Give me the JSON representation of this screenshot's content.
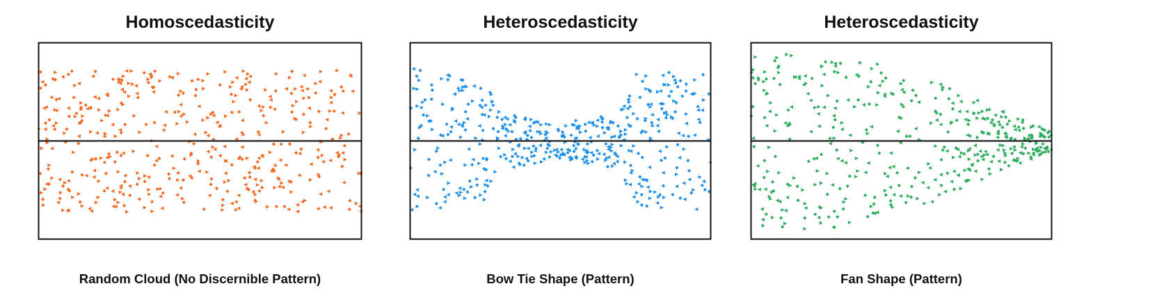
{
  "colors": {
    "orange": "#f26a21",
    "blue": "#1e90e8",
    "green": "#2cad5b",
    "frame": "#111111",
    "baseline": "#1a1a1a"
  },
  "marker": "small-triangle",
  "chart_data": [
    {
      "type": "scatter",
      "title": "Homoscedasticity",
      "caption": "Random Cloud (No Discernible Pattern)",
      "color": "#f26a21",
      "pattern": "random-cloud",
      "xlim": [
        0,
        100
      ],
      "ylim": [
        -4,
        4
      ],
      "baseline_y": 0,
      "grid": false,
      "n_points": 460,
      "spread_profile": {
        "kind": "constant",
        "min_abs": 0,
        "max_abs": 2.9
      }
    },
    {
      "type": "scatter",
      "title": "Heteroscedasticity",
      "caption": "Bow Tie Shape (Pattern)",
      "color": "#1e90e8",
      "pattern": "bow-tie",
      "xlim": [
        0,
        100
      ],
      "ylim": [
        -4,
        4
      ],
      "baseline_y": 0,
      "grid": false,
      "n_points": 480,
      "spread_profile": {
        "kind": "bow-tie",
        "x": [
          0,
          25,
          30,
          50,
          70,
          75,
          100
        ],
        "max_abs": [
          3.0,
          2.4,
          1.2,
          0.7,
          1.2,
          2.8,
          2.8
        ]
      }
    },
    {
      "type": "scatter",
      "title": "Heteroscedasticity",
      "caption": "Fan Shape (Pattern)",
      "color": "#2cad5b",
      "pattern": "fan",
      "xlim": [
        0,
        100
      ],
      "ylim": [
        -4,
        4
      ],
      "baseline_y": 0,
      "grid": false,
      "n_points": 440,
      "spread_profile": {
        "kind": "fan",
        "x": [
          0,
          30,
          60,
          90,
          100
        ],
        "max_abs": [
          3.6,
          3.6,
          2.5,
          0.9,
          0.4
        ]
      }
    }
  ]
}
